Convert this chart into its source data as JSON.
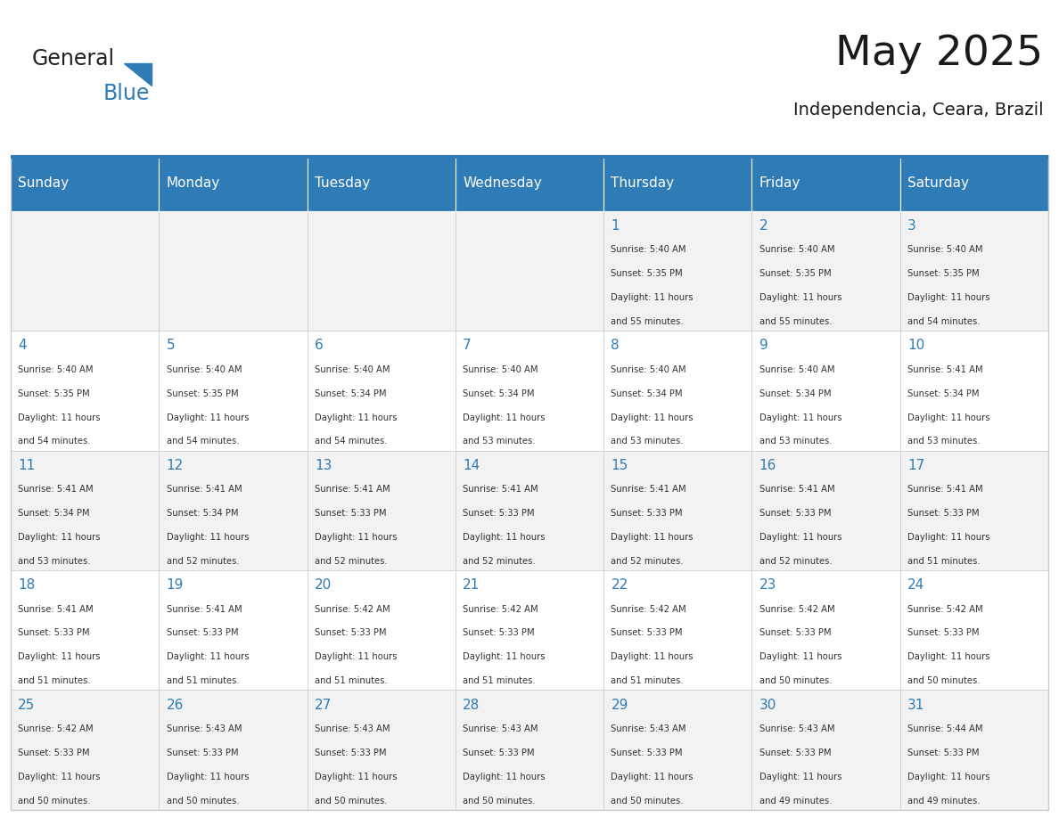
{
  "title": "May 2025",
  "subtitle": "Independencia, Ceara, Brazil",
  "days_of_week": [
    "Sunday",
    "Monday",
    "Tuesday",
    "Wednesday",
    "Thursday",
    "Friday",
    "Saturday"
  ],
  "header_bg": "#2E7BB5",
  "header_text_color": "#FFFFFF",
  "cell_bg_odd": "#F2F2F2",
  "cell_bg_even": "#FFFFFF",
  "day_num_color": "#2E7BB5",
  "text_color": "#333333",
  "grid_color": "#CCCCCC",
  "logo_general_color": "#222222",
  "logo_blue_color": "#2E7BB5",
  "days": [
    {
      "date": 1,
      "col": 4,
      "row": 0,
      "sunrise": "5:40 AM",
      "sunset": "5:35 PM",
      "daylight": "11 hours and 55 minutes."
    },
    {
      "date": 2,
      "col": 5,
      "row": 0,
      "sunrise": "5:40 AM",
      "sunset": "5:35 PM",
      "daylight": "11 hours and 55 minutes."
    },
    {
      "date": 3,
      "col": 6,
      "row": 0,
      "sunrise": "5:40 AM",
      "sunset": "5:35 PM",
      "daylight": "11 hours and 54 minutes."
    },
    {
      "date": 4,
      "col": 0,
      "row": 1,
      "sunrise": "5:40 AM",
      "sunset": "5:35 PM",
      "daylight": "11 hours and 54 minutes."
    },
    {
      "date": 5,
      "col": 1,
      "row": 1,
      "sunrise": "5:40 AM",
      "sunset": "5:35 PM",
      "daylight": "11 hours and 54 minutes."
    },
    {
      "date": 6,
      "col": 2,
      "row": 1,
      "sunrise": "5:40 AM",
      "sunset": "5:34 PM",
      "daylight": "11 hours and 54 minutes."
    },
    {
      "date": 7,
      "col": 3,
      "row": 1,
      "sunrise": "5:40 AM",
      "sunset": "5:34 PM",
      "daylight": "11 hours and 53 minutes."
    },
    {
      "date": 8,
      "col": 4,
      "row": 1,
      "sunrise": "5:40 AM",
      "sunset": "5:34 PM",
      "daylight": "11 hours and 53 minutes."
    },
    {
      "date": 9,
      "col": 5,
      "row": 1,
      "sunrise": "5:40 AM",
      "sunset": "5:34 PM",
      "daylight": "11 hours and 53 minutes."
    },
    {
      "date": 10,
      "col": 6,
      "row": 1,
      "sunrise": "5:41 AM",
      "sunset": "5:34 PM",
      "daylight": "11 hours and 53 minutes."
    },
    {
      "date": 11,
      "col": 0,
      "row": 2,
      "sunrise": "5:41 AM",
      "sunset": "5:34 PM",
      "daylight": "11 hours and 53 minutes."
    },
    {
      "date": 12,
      "col": 1,
      "row": 2,
      "sunrise": "5:41 AM",
      "sunset": "5:34 PM",
      "daylight": "11 hours and 52 minutes."
    },
    {
      "date": 13,
      "col": 2,
      "row": 2,
      "sunrise": "5:41 AM",
      "sunset": "5:33 PM",
      "daylight": "11 hours and 52 minutes."
    },
    {
      "date": 14,
      "col": 3,
      "row": 2,
      "sunrise": "5:41 AM",
      "sunset": "5:33 PM",
      "daylight": "11 hours and 52 minutes."
    },
    {
      "date": 15,
      "col": 4,
      "row": 2,
      "sunrise": "5:41 AM",
      "sunset": "5:33 PM",
      "daylight": "11 hours and 52 minutes."
    },
    {
      "date": 16,
      "col": 5,
      "row": 2,
      "sunrise": "5:41 AM",
      "sunset": "5:33 PM",
      "daylight": "11 hours and 52 minutes."
    },
    {
      "date": 17,
      "col": 6,
      "row": 2,
      "sunrise": "5:41 AM",
      "sunset": "5:33 PM",
      "daylight": "11 hours and 51 minutes."
    },
    {
      "date": 18,
      "col": 0,
      "row": 3,
      "sunrise": "5:41 AM",
      "sunset": "5:33 PM",
      "daylight": "11 hours and 51 minutes."
    },
    {
      "date": 19,
      "col": 1,
      "row": 3,
      "sunrise": "5:41 AM",
      "sunset": "5:33 PM",
      "daylight": "11 hours and 51 minutes."
    },
    {
      "date": 20,
      "col": 2,
      "row": 3,
      "sunrise": "5:42 AM",
      "sunset": "5:33 PM",
      "daylight": "11 hours and 51 minutes."
    },
    {
      "date": 21,
      "col": 3,
      "row": 3,
      "sunrise": "5:42 AM",
      "sunset": "5:33 PM",
      "daylight": "11 hours and 51 minutes."
    },
    {
      "date": 22,
      "col": 4,
      "row": 3,
      "sunrise": "5:42 AM",
      "sunset": "5:33 PM",
      "daylight": "11 hours and 51 minutes."
    },
    {
      "date": 23,
      "col": 5,
      "row": 3,
      "sunrise": "5:42 AM",
      "sunset": "5:33 PM",
      "daylight": "11 hours and 50 minutes."
    },
    {
      "date": 24,
      "col": 6,
      "row": 3,
      "sunrise": "5:42 AM",
      "sunset": "5:33 PM",
      "daylight": "11 hours and 50 minutes."
    },
    {
      "date": 25,
      "col": 0,
      "row": 4,
      "sunrise": "5:42 AM",
      "sunset": "5:33 PM",
      "daylight": "11 hours and 50 minutes."
    },
    {
      "date": 26,
      "col": 1,
      "row": 4,
      "sunrise": "5:43 AM",
      "sunset": "5:33 PM",
      "daylight": "11 hours and 50 minutes."
    },
    {
      "date": 27,
      "col": 2,
      "row": 4,
      "sunrise": "5:43 AM",
      "sunset": "5:33 PM",
      "daylight": "11 hours and 50 minutes."
    },
    {
      "date": 28,
      "col": 3,
      "row": 4,
      "sunrise": "5:43 AM",
      "sunset": "5:33 PM",
      "daylight": "11 hours and 50 minutes."
    },
    {
      "date": 29,
      "col": 4,
      "row": 4,
      "sunrise": "5:43 AM",
      "sunset": "5:33 PM",
      "daylight": "11 hours and 50 minutes."
    },
    {
      "date": 30,
      "col": 5,
      "row": 4,
      "sunrise": "5:43 AM",
      "sunset": "5:33 PM",
      "daylight": "11 hours and 49 minutes."
    },
    {
      "date": 31,
      "col": 6,
      "row": 4,
      "sunrise": "5:44 AM",
      "sunset": "5:33 PM",
      "daylight": "11 hours and 49 minutes."
    }
  ]
}
